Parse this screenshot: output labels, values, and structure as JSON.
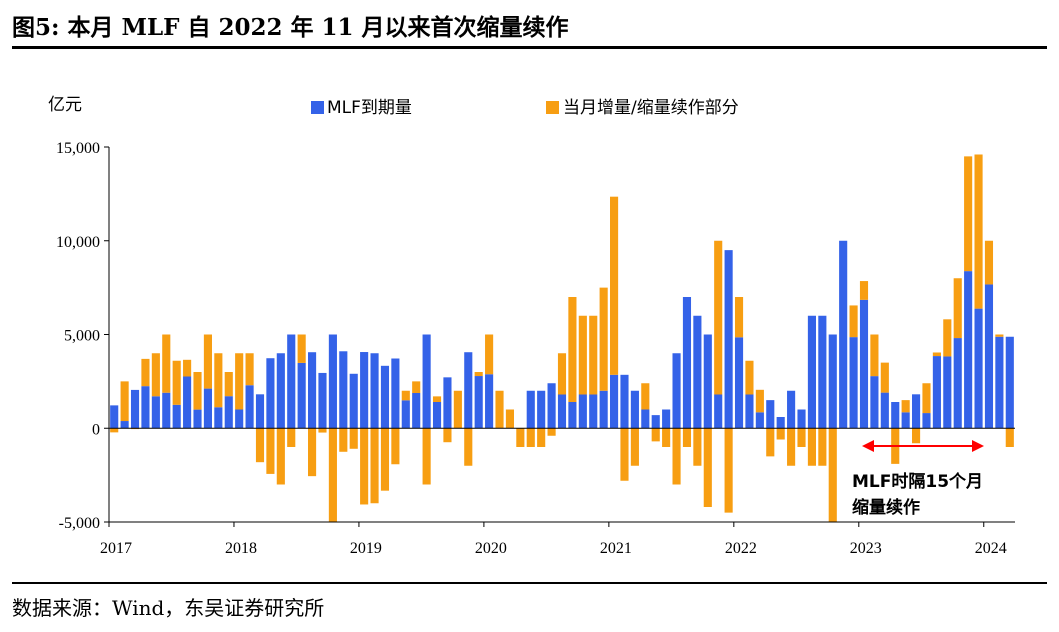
{
  "header": {
    "title": "图5:  本月 MLF 自 2022 年 11 月以来首次缩量续作"
  },
  "footer": {
    "source": "数据来源：Wind，东吴证券研究所"
  },
  "chart_data": {
    "type": "bar",
    "stacked": true,
    "unit": "亿元",
    "ylim": [
      -5000,
      15000
    ],
    "yticks": [
      15000,
      10000,
      5000,
      0,
      -5000
    ],
    "ytick_labels": [
      "15,000",
      "10,000",
      "5,000",
      "0",
      "-5,000"
    ],
    "xtick_labels": [
      "2017",
      "2018",
      "2019",
      "2020",
      "2021",
      "2022",
      "2023",
      "2024"
    ],
    "legend": [
      "MLF到期量",
      "当月增量/缩量续作部分"
    ],
    "colors": {
      "maturity": "#3462E8",
      "net": "#F79E12"
    },
    "annotation": {
      "line1": "MLF时隔15个月",
      "line2": "缩量续作"
    },
    "series": [
      {
        "name": "MLF到期量",
        "values": [
          1220,
          385,
          2045,
          2245,
          1705,
          1895,
          1250,
          2760,
          995,
          2115,
          1120,
          1710,
          1000,
          2295,
          1810,
          3735,
          4000,
          5000,
          3485,
          4055,
          2950,
          5000,
          4105,
          2905,
          4065,
          4000,
          3330,
          3720,
          1490,
          1880,
          5000,
          1400,
          2715,
          0,
          4055,
          2785,
          2880,
          0,
          0,
          0,
          2000,
          2000,
          2400,
          1800,
          1400,
          1800,
          1800,
          2000,
          2850,
          2850,
          2000,
          1000,
          700,
          1000,
          4000,
          7000,
          6000,
          5000,
          1800,
          9500,
          4850,
          1800,
          850,
          1500,
          600,
          2000,
          1000,
          6000,
          6000,
          5000,
          10000,
          4860,
          6850,
          2780,
          1900,
          1400,
          850,
          1810,
          810,
          3850,
          3830,
          4810,
          8380,
          6380,
          7670,
          4880,
          4880
        ]
      },
      {
        "name": "当月增量/缩量续作部分",
        "values": [
          -220,
          2115,
          -45,
          1455,
          2295,
          3105,
          2350,
          890,
          2005,
          2885,
          2880,
          1290,
          3000,
          1705,
          -1810,
          -2435,
          -3000,
          -1000,
          1515,
          -2555,
          -230,
          -5000,
          -1255,
          -1095,
          -4065,
          -4000,
          -3330,
          -1920,
          510,
          620,
          -3000,
          300,
          -745,
          2000,
          -2000,
          215,
          2120,
          2000,
          1000,
          -1000,
          -1000,
          -1000,
          -400,
          2200,
          5600,
          4200,
          4200,
          5500,
          9500,
          -2800,
          -2000,
          1400,
          -700,
          -1000,
          -3000,
          -1000,
          -2000,
          -4200,
          8200,
          -4500,
          2150,
          1800,
          1200,
          -1500,
          -600,
          -2000,
          -1000,
          -2000,
          -2000,
          -5000,
          0,
          1690,
          1000,
          2220,
          1600,
          -1900,
          650,
          -800,
          1590,
          190,
          1980,
          3190,
          6120,
          8220,
          2330,
          120,
          -1000
        ]
      }
    ]
  }
}
